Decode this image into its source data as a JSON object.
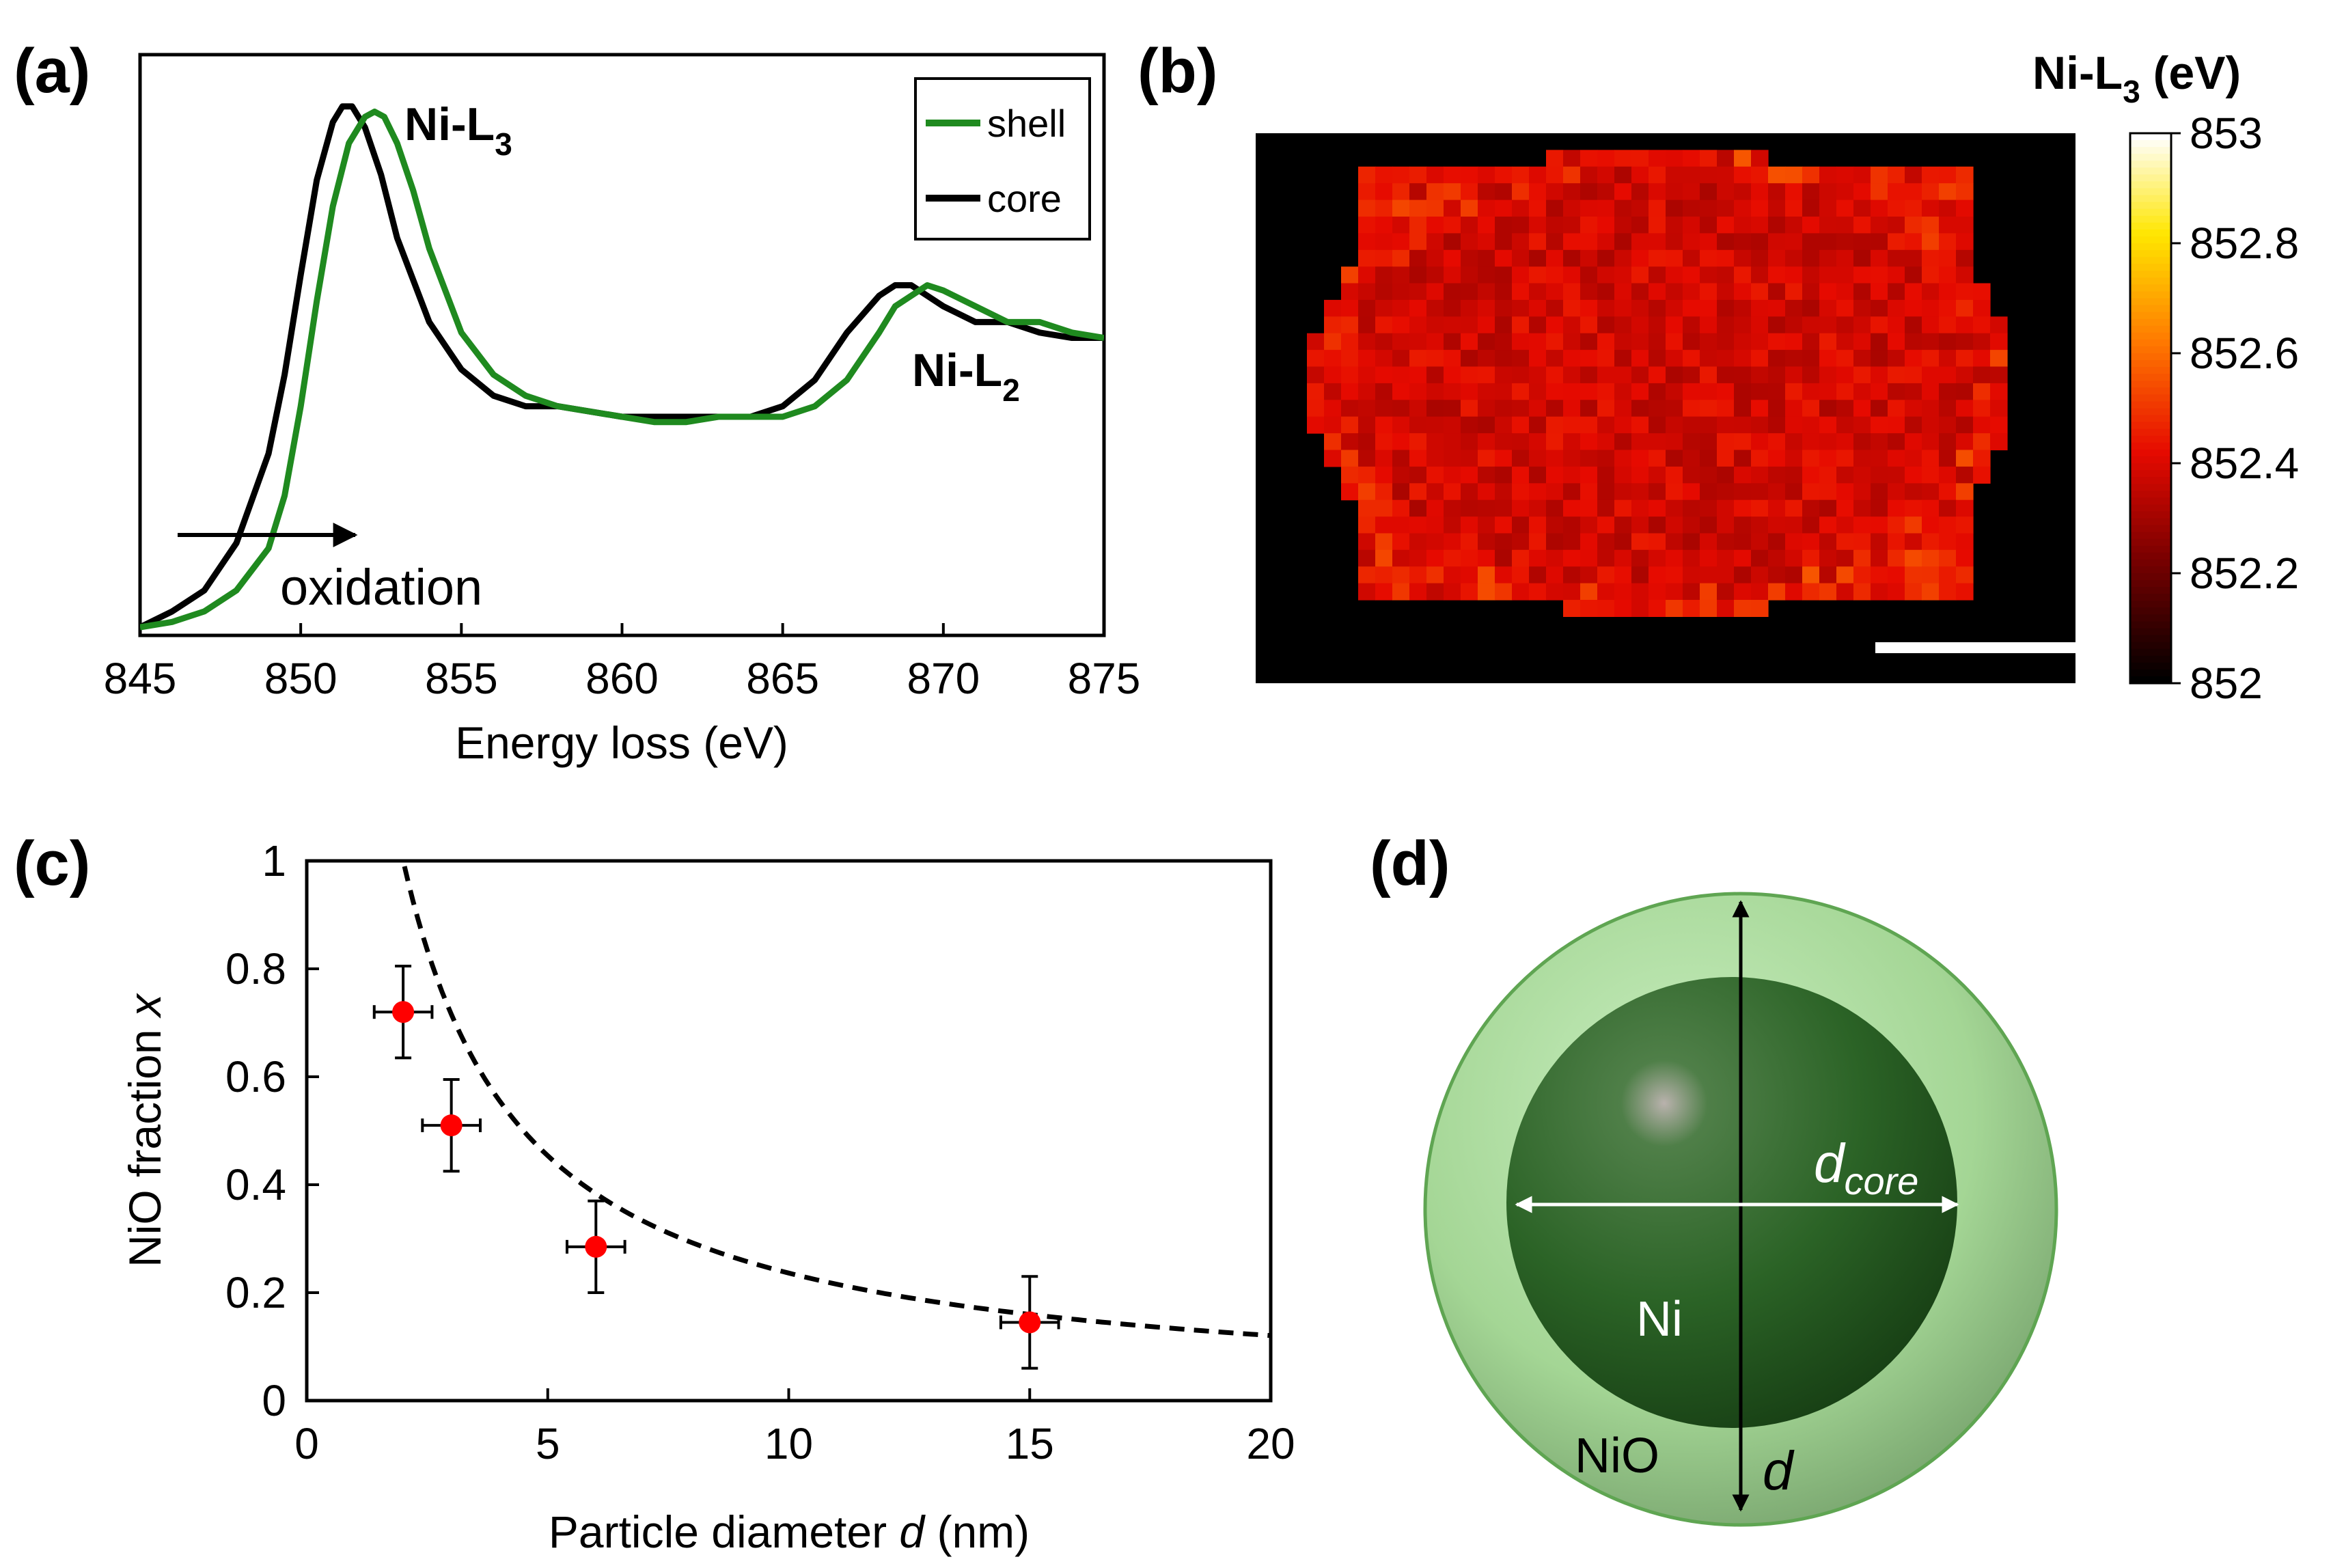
{
  "panels": {
    "a": {
      "label": "(a)",
      "chart_data": {
        "type": "line",
        "xlabel": "Energy loss (eV)",
        "ylabel": "",
        "xlim": [
          845,
          875
        ],
        "xticks": [
          "845",
          "850",
          "855",
          "860",
          "865",
          "870",
          "875"
        ],
        "yticks_visible": false,
        "legend": {
          "placement": "top-right",
          "entries": [
            "shell",
            "core"
          ]
        },
        "series": [
          {
            "name": "shell",
            "color": "#1f8a1f",
            "x": [
              845,
              846,
              847,
              848,
              849,
              849.5,
              850,
              850.5,
              851,
              851.5,
              852,
              852.3,
              852.6,
              853,
              853.5,
              854,
              855,
              856,
              857,
              858,
              859,
              860,
              861,
              862,
              863,
              864,
              865,
              866,
              867,
              868,
              868.5,
              869,
              869.5,
              870,
              871,
              872,
              873,
              874,
              875
            ],
            "y": [
              0.0,
              0.01,
              0.03,
              0.07,
              0.15,
              0.25,
              0.42,
              0.62,
              0.8,
              0.92,
              0.97,
              0.98,
              0.97,
              0.92,
              0.83,
              0.72,
              0.56,
              0.48,
              0.44,
              0.42,
              0.41,
              0.4,
              0.39,
              0.39,
              0.4,
              0.4,
              0.4,
              0.42,
              0.47,
              0.56,
              0.61,
              0.63,
              0.65,
              0.64,
              0.61,
              0.58,
              0.58,
              0.56,
              0.55
            ]
          },
          {
            "name": "core",
            "color": "#000000",
            "x": [
              845,
              846,
              847,
              848,
              849,
              849.5,
              850,
              850.5,
              851,
              851.3,
              851.6,
              852,
              852.5,
              853,
              854,
              855,
              856,
              857,
              858,
              859,
              860,
              861,
              862,
              863,
              864,
              865,
              866,
              867,
              868,
              868.5,
              869,
              869.5,
              870,
              871,
              872,
              873,
              874,
              875
            ],
            "y": [
              0.0,
              0.03,
              0.07,
              0.16,
              0.33,
              0.48,
              0.67,
              0.85,
              0.96,
              0.99,
              0.99,
              0.95,
              0.86,
              0.74,
              0.58,
              0.49,
              0.44,
              0.42,
              0.42,
              0.41,
              0.4,
              0.4,
              0.4,
              0.4,
              0.4,
              0.42,
              0.47,
              0.56,
              0.63,
              0.65,
              0.65,
              0.63,
              0.61,
              0.58,
              0.58,
              0.56,
              0.55,
              0.55
            ]
          }
        ],
        "annotations": [
          "Ni-L",
          "3",
          "Ni-L",
          "2",
          "oxidation"
        ]
      },
      "annotations": {
        "l3_main": "Ni-L",
        "l3_sub": "3",
        "l2_main": "Ni-L",
        "l2_sub": "2",
        "oxidation": "oxidation"
      }
    },
    "b": {
      "label": "(b)",
      "chart_data": {
        "type": "heatmap",
        "title": "Ni-L",
        "title_sub": "3",
        "title_unit": " (eV)",
        "colorbar": {
          "min": 852,
          "max": 853,
          "ticks": [
            "853",
            "852.8",
            "852.6",
            "852.4",
            "852.2",
            "852"
          ]
        },
        "scale_bar": true
      }
    },
    "c": {
      "label": "(c)",
      "chart_data": {
        "type": "scatter",
        "xlabel": "Particle diameter",
        "xlabel_var": "d",
        "xlabel_unit": " (nm)",
        "ylabel": "NiO fraction",
        "ylabel_var": "x",
        "xlim": [
          0,
          20
        ],
        "ylim": [
          0,
          1
        ],
        "xticks": [
          "0",
          "5",
          "10",
          "15",
          "20"
        ],
        "yticks": [
          "0",
          "0.2",
          "0.4",
          "0.6",
          "0.8",
          "1"
        ],
        "points": [
          {
            "x": 2,
            "y": 0.72,
            "xerr": 0.6,
            "yerr": 0.085
          },
          {
            "x": 3,
            "y": 0.51,
            "xerr": 0.6,
            "yerr": 0.085
          },
          {
            "x": 6,
            "y": 0.285,
            "xerr": 0.6,
            "yerr": 0.085
          },
          {
            "x": 15,
            "y": 0.145,
            "xerr": 0.6,
            "yerr": 0.085
          }
        ],
        "point_color": "#ff0000",
        "fit_curve": {
          "style": "dashed",
          "x_start": 1,
          "x_end": 20,
          "shell_thickness_nm": 0.2
        }
      }
    },
    "d": {
      "label": "(d)",
      "diagram": {
        "core_label": "Ni",
        "shell_label": "NiO",
        "core_dim_var": "d",
        "core_dim_sub": "core",
        "outer_dim_var": "d"
      }
    }
  },
  "colors": {
    "shell_line": "#1f8a1f",
    "core_line": "#000000",
    "marker": "#ff0000",
    "shell_fill": "#a6d99a",
    "core_fill": "#2f6b2a"
  }
}
